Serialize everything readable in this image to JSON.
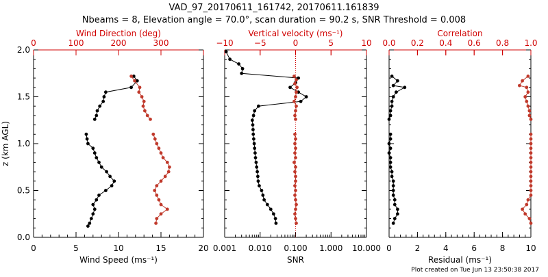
{
  "title_line1": "VAD_97_20170611_161742, 20170611.161839",
  "title_line2": "Nbeams = 8, Elevation angle = 70.0°, scan duration = 90.2 s, SNR Threshold = 0.008",
  "footer": "Plot created on Tue Jun 13 23:50:38 2017",
  "colors": {
    "black": "#000000",
    "red": "#c0392b",
    "axis_red": "#d00000"
  },
  "chart_data": [
    {
      "type": "line",
      "panel": "wind",
      "ylabel": "z (km AGL)",
      "ylim": [
        0,
        2.0
      ],
      "yticks": [
        "0.0",
        "0.5",
        "1.0",
        "1.5",
        "2.0"
      ],
      "bottom_axis": {
        "label": "Wind Speed (ms⁻¹)",
        "range": [
          0,
          20
        ],
        "ticks": [
          "0",
          "5",
          "10",
          "15",
          "20"
        ]
      },
      "top_axis": {
        "label": "Wind Direction (deg)",
        "range": [
          0,
          400
        ],
        "ticks": [
          "0",
          "100",
          "200",
          "300"
        ]
      },
      "series": [
        {
          "name": "Wind Speed",
          "axis": "bottom",
          "color": "black",
          "segments": [
            {
              "z": [
                1.72,
                1.67,
                1.6,
                1.55,
                1.5,
                1.45,
                1.4,
                1.35,
                1.3,
                1.26
              ],
              "values": [
                11.8,
                12.2,
                11.5,
                8.5,
                8.3,
                8.2,
                7.8,
                7.5,
                7.4,
                7.2
              ]
            },
            {
              "z": [
                1.1,
                1.05,
                1.0,
                0.95,
                0.9,
                0.85,
                0.8,
                0.75,
                0.7,
                0.65,
                0.6,
                0.55,
                0.5,
                0.45,
                0.4,
                0.35,
                0.3,
                0.25,
                0.2,
                0.15,
                0.12
              ],
              "values": [
                6.2,
                6.3,
                6.4,
                7.0,
                7.2,
                7.4,
                7.7,
                8.0,
                8.6,
                9.0,
                9.5,
                9.2,
                8.5,
                7.7,
                7.4,
                7.0,
                7.2,
                7.0,
                6.8,
                6.6,
                6.4
              ]
            }
          ]
        },
        {
          "name": "Wind Direction",
          "axis": "top",
          "color": "red",
          "segments": [
            {
              "z": [
                1.72,
                1.67,
                1.6,
                1.55,
                1.5,
                1.45,
                1.4,
                1.35,
                1.3,
                1.26
              ],
              "values": [
                230,
                238,
                250,
                248,
                255,
                260,
                258,
                262,
                268,
                275
              ]
            },
            {
              "z": [
                1.1,
                1.05,
                1.0,
                0.95,
                0.9,
                0.85,
                0.8,
                0.75,
                0.7,
                0.65,
                0.6,
                0.55,
                0.5,
                0.45,
                0.4,
                0.35,
                0.3,
                0.25,
                0.2,
                0.15
              ],
              "values": [
                282,
                286,
                290,
                295,
                300,
                305,
                315,
                320,
                318,
                310,
                300,
                290,
                285,
                290,
                295,
                300,
                315,
                300,
                290,
                288
              ]
            }
          ]
        }
      ]
    },
    {
      "type": "line",
      "panel": "snr",
      "ylim": [
        0,
        2.0
      ],
      "bottom_axis": {
        "label": "SNR",
        "scale": "log",
        "range": [
          0.001,
          10.0
        ],
        "ticks": [
          "0.001",
          "0.010",
          "0.100",
          "1.000",
          "10.000"
        ]
      },
      "top_axis": {
        "label": "Vertical velocity (ms⁻¹)",
        "range": [
          -10,
          10
        ],
        "ticks": [
          "−10",
          "−5",
          "0",
          "5",
          "10"
        ]
      },
      "reference_line": {
        "axis": "top",
        "value": 0
      },
      "series": [
        {
          "name": "SNR",
          "axis": "bottom",
          "color": "black",
          "segments": [
            {
              "z": [
                1.98,
                1.9,
                1.85,
                1.8,
                1.75,
                1.7,
                1.65,
                1.6,
                1.55,
                1.5,
                1.45,
                1.4,
                1.35,
                1.3,
                1.25,
                1.2,
                1.15,
                1.1,
                1.05,
                1.0,
                0.95,
                0.9,
                0.85,
                0.8,
                0.75,
                0.7,
                0.65,
                0.6,
                0.55,
                0.5,
                0.45,
                0.4,
                0.35,
                0.3,
                0.25,
                0.2,
                0.15
              ],
              "values": [
                0.0011,
                0.0014,
                0.0025,
                0.0032,
                0.003,
                0.12,
                0.1,
                0.07,
                0.12,
                0.2,
                0.14,
                0.009,
                0.007,
                0.0065,
                0.006,
                0.0062,
                0.0063,
                0.0064,
                0.0066,
                0.0068,
                0.007,
                0.0072,
                0.0074,
                0.0077,
                0.008,
                0.0083,
                0.0086,
                0.0088,
                0.0094,
                0.011,
                0.012,
                0.013,
                0.016,
                0.02,
                0.024,
                0.027,
                0.028
              ]
            }
          ]
        },
        {
          "name": "Vertical velocity",
          "axis": "top",
          "color": "red",
          "segments": [
            {
              "z": [
                1.72,
                1.68,
                1.64,
                1.6,
                1.55,
                1.5,
                1.45,
                1.4,
                1.35,
                1.3,
                1.26
              ],
              "values": [
                -0.2,
                0.1,
                -0.1,
                0.2,
                0.1,
                0.0,
                -0.2,
                0.1,
                0.0,
                -0.1,
                0.0
              ]
            },
            {
              "z": [
                1.1,
                1.05,
                1.0,
                0.95,
                0.9,
                0.85,
                0.8,
                0.75,
                0.7,
                0.65,
                0.6,
                0.55,
                0.5,
                0.45,
                0.4,
                0.35,
                0.3,
                0.25,
                0.2,
                0.15
              ],
              "values": [
                -0.1,
                0.0,
                -0.1,
                0.0,
                -0.1,
                0.0,
                -0.2,
                0.0,
                -0.1,
                0.0,
                0.0,
                -0.1,
                0.0,
                -0.1,
                0.0,
                0.1,
                0.0,
                -0.1,
                0.0,
                0.1
              ]
            }
          ]
        }
      ]
    },
    {
      "type": "line",
      "panel": "corr",
      "ylim": [
        0,
        2.0
      ],
      "bottom_axis": {
        "label": "Residual (ms⁻¹)",
        "range": [
          0,
          10
        ],
        "ticks": [
          "0",
          "2",
          "4",
          "6",
          "8",
          "10"
        ]
      },
      "top_axis": {
        "label": "Correlation",
        "range": [
          0,
          1.0
        ],
        "ticks": [
          "0.0",
          "0.2",
          "0.4",
          "0.6",
          "0.8",
          "1.0"
        ]
      },
      "series": [
        {
          "name": "Residual",
          "axis": "bottom",
          "color": "black",
          "segments": [
            {
              "z": [
                1.72,
                1.67,
                1.62,
                1.6,
                1.55,
                1.5,
                1.45,
                1.4,
                1.35,
                1.3,
                1.26
              ],
              "values": [
                0.2,
                0.6,
                0.3,
                1.1,
                0.5,
                0.3,
                0.2,
                0.2,
                0.1,
                0.1,
                0.0
              ]
            },
            {
              "z": [
                1.1,
                1.05,
                1.0,
                0.95,
                0.9,
                0.85,
                0.8,
                0.75,
                0.7,
                0.65,
                0.6,
                0.55,
                0.5,
                0.45,
                0.4,
                0.35,
                0.3,
                0.25,
                0.2,
                0.15
              ],
              "values": [
                0.1,
                0.1,
                0.0,
                0.1,
                0.0,
                0.1,
                0.1,
                0.1,
                0.2,
                0.2,
                0.3,
                0.3,
                0.3,
                0.3,
                0.4,
                0.4,
                0.6,
                0.6,
                0.4,
                0.3
              ]
            }
          ]
        },
        {
          "name": "Correlation",
          "axis": "top",
          "color": "red",
          "segments": [
            {
              "z": [
                1.72,
                1.67,
                1.62,
                1.6,
                1.55,
                1.5,
                1.45,
                1.4,
                1.35,
                1.3,
                1.26
              ],
              "values": [
                0.98,
                0.94,
                0.92,
                0.97,
                0.98,
                0.96,
                0.97,
                0.98,
                0.99,
                0.99,
                1.0
              ]
            },
            {
              "z": [
                1.1,
                1.05,
                1.0,
                0.95,
                0.9,
                0.85,
                0.8,
                0.75,
                0.7,
                0.65,
                0.6,
                0.55,
                0.5,
                0.45,
                0.4,
                0.35,
                0.3,
                0.25,
                0.2,
                0.15
              ],
              "values": [
                1.0,
                1.0,
                1.0,
                1.0,
                1.0,
                1.0,
                1.0,
                1.0,
                1.0,
                1.0,
                1.0,
                1.0,
                1.0,
                1.0,
                0.98,
                0.97,
                0.94,
                0.96,
                0.99,
                1.0
              ]
            }
          ]
        }
      ]
    }
  ]
}
